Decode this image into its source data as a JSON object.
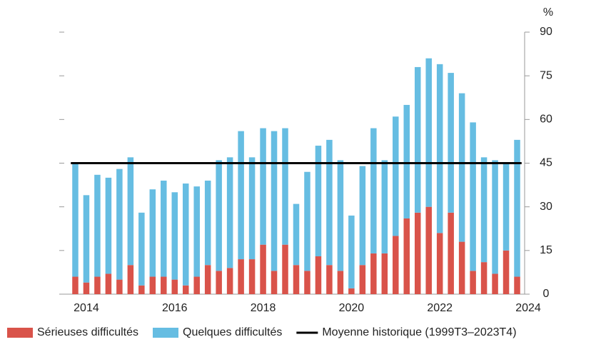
{
  "chart_data": {
    "type": "stacked_bar",
    "y_axis_label": "%",
    "x": [
      2013.75,
      2014,
      2014.25,
      2014.5,
      2014.75,
      2015,
      2015.25,
      2015.5,
      2015.75,
      2016,
      2016.25,
      2016.5,
      2016.75,
      2017,
      2017.25,
      2017.5,
      2017.75,
      2018,
      2018.25,
      2018.5,
      2018.75,
      2019,
      2019.25,
      2019.5,
      2019.75,
      2020,
      2020.25,
      2020.5,
      2020.75,
      2021,
      2021.25,
      2021.5,
      2021.75,
      2022,
      2022.25,
      2022.5,
      2022.75,
      2023,
      2023.25,
      2023.5,
      2023.75
    ],
    "series": [
      {
        "name": "Sérieuses difficultés",
        "color": "#d9534a",
        "values": [
          6,
          4,
          6,
          7,
          5,
          10,
          3,
          6,
          6,
          5,
          3,
          6,
          10,
          8,
          9,
          12,
          12,
          17,
          8,
          17,
          10,
          8,
          13,
          10,
          8,
          2,
          10,
          14,
          14,
          20,
          26,
          28,
          30,
          21,
          28,
          18,
          8,
          11,
          7,
          15,
          6
        ]
      },
      {
        "name": "Quelques difficultés",
        "color": "#66bde2",
        "values": [
          39,
          30,
          35,
          33,
          38,
          37,
          25,
          30,
          33,
          30,
          35,
          31,
          29,
          38,
          38,
          44,
          35,
          40,
          48,
          40,
          21,
          34,
          38,
          43,
          38,
          25,
          34,
          43,
          32,
          41,
          39,
          50,
          51,
          58,
          48,
          51,
          51,
          36,
          39,
          30,
          47
        ]
      }
    ],
    "reference_line": {
      "name": "Moyenne historique (1999T3–2023T4)",
      "value": 45,
      "color": "#000000"
    },
    "xlim": [
      2013.5,
      2024
    ],
    "xticks": [
      2014,
      2016,
      2018,
      2020,
      2022,
      2024
    ],
    "ylim": [
      0,
      90
    ],
    "yticks": [
      0,
      15,
      30,
      45,
      60,
      75,
      90
    ]
  }
}
